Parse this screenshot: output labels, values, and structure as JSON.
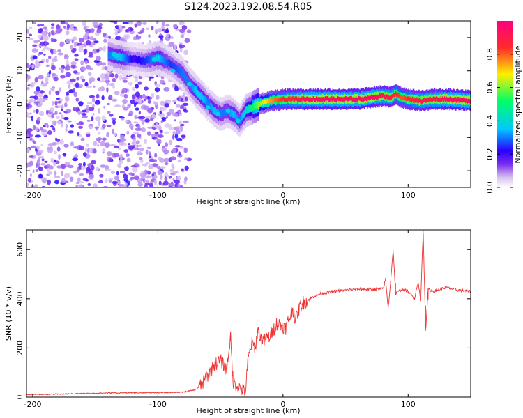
{
  "title": "S124.2023.192.08.54.R05",
  "colors": {
    "frame": "#000000",
    "snr_line": "#ee3333",
    "spectrogram_cmap": [
      "#ffffff",
      "#d8c0f0",
      "#7a2df0",
      "#2a00ff",
      "#00c8ff",
      "#00ff66",
      "#ffee00",
      "#ff2a2a",
      "#ff0080"
    ]
  },
  "chart_data": [
    {
      "type": "heatmap",
      "title": "",
      "xlabel": "Height of straight line (km)",
      "ylabel": "Frequency (Hz)",
      "xlim": [
        -205,
        150
      ],
      "ylim": [
        -25,
        25
      ],
      "xticks": [
        -200,
        -100,
        0,
        100
      ],
      "yticks": [
        -20,
        -10,
        0,
        10,
        20
      ],
      "grid": false,
      "colorbar": {
        "label": "Normalized spectral amplitude",
        "range": [
          0,
          1
        ],
        "ticks": [
          0.0,
          0.2,
          0.4,
          0.6,
          0.8
        ]
      },
      "ridge": {
        "description_points_x": [
          -140,
          -130,
          -120,
          -110,
          -100,
          -90,
          -80,
          -75,
          -70,
          -65,
          -60,
          -55,
          -50,
          -45,
          -40,
          -35,
          -30,
          -20,
          -10,
          0,
          10,
          20,
          40,
          60,
          70,
          80,
          85,
          90,
          95,
          100,
          110,
          120,
          130,
          150
        ],
        "frequency_hz": [
          15,
          14,
          13.5,
          13,
          14,
          12,
          9,
          6,
          4,
          2,
          0,
          -2,
          -3,
          -2,
          -3,
          -5,
          -2,
          0,
          1,
          1.5,
          1.5,
          1.5,
          1.5,
          1.5,
          2,
          2.5,
          2,
          3,
          2,
          1.5,
          1,
          1.5,
          1.5,
          1
        ],
        "amplitude": [
          0.3,
          0.35,
          0.2,
          0.25,
          0.35,
          0.25,
          0.3,
          0.3,
          0.35,
          0.35,
          0.3,
          0.35,
          0.3,
          0.3,
          0.35,
          0.3,
          0.4,
          0.6,
          0.75,
          0.85,
          0.9,
          0.95,
          0.95,
          0.95,
          0.95,
          0.9,
          0.9,
          0.85,
          0.8,
          0.85,
          0.9,
          0.9,
          0.95,
          0.95
        ]
      },
      "noise_region_x": [
        -205,
        -75
      ]
    },
    {
      "type": "line",
      "title": "",
      "xlabel": "Height of straight line (km)",
      "ylabel": "SNR (10 * v/v)",
      "xlim": [
        -205,
        150
      ],
      "ylim": [
        0,
        680
      ],
      "xticks": [
        -200,
        -100,
        0,
        100
      ],
      "yticks": [
        0,
        200,
        400,
        600
      ],
      "grid": false,
      "series": [
        {
          "x": [
            -205,
            -180,
            -160,
            -140,
            -120,
            -100,
            -80,
            -70,
            -65,
            -60,
            -55,
            -50,
            -45,
            -42,
            -40,
            -35,
            -30,
            -28,
            -25,
            -22,
            -20,
            -18,
            -15,
            -10,
            -5,
            0,
            2,
            5,
            8,
            10,
            12,
            15,
            20,
            25,
            30,
            40,
            50,
            60,
            70,
            80,
            82,
            84,
            86,
            88,
            90,
            95,
            100,
            105,
            108,
            110,
            112,
            114,
            116,
            120,
            130,
            140,
            150
          ],
          "y": [
            10,
            12,
            15,
            17,
            18,
            18,
            20,
            30,
            50,
            90,
            130,
            150,
            110,
            250,
            60,
            40,
            20,
            150,
            220,
            200,
            280,
            240,
            230,
            250,
            300,
            290,
            280,
            320,
            360,
            310,
            350,
            380,
            395,
            410,
            420,
            430,
            435,
            440,
            438,
            440,
            480,
            360,
            470,
            600,
            420,
            440,
            430,
            400,
            470,
            390,
            680,
            270,
            440,
            430,
            445,
            435,
            430
          ]
        }
      ]
    }
  ]
}
